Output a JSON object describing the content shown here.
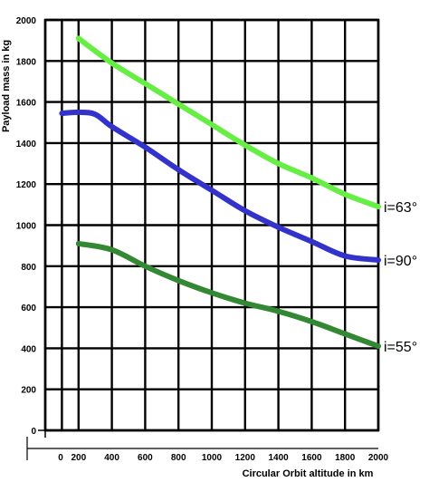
{
  "chart_data": {
    "type": "line",
    "xlabel": "Circular Orbit altitude in km",
    "ylabel": "Payload mass in kg",
    "xlim": [
      0,
      2000
    ],
    "ylim": [
      0,
      2000
    ],
    "x_ticks": [
      0,
      200,
      400,
      600,
      800,
      1000,
      1200,
      1400,
      1600,
      1800,
      2000
    ],
    "y_ticks": [
      0,
      200,
      400,
      600,
      800,
      1000,
      1200,
      1400,
      1600,
      1800,
      2000
    ],
    "x_tick_labels": [
      "0",
      "200",
      "400",
      "600",
      "800",
      "1000",
      "1200",
      "1400",
      "1600",
      "1800",
      "2000"
    ],
    "y_tick_labels": [
      "0",
      "200",
      "400",
      "600",
      "800",
      "1000",
      "1200",
      "1400",
      "1600",
      "1800",
      "2000"
    ],
    "grid": true,
    "legend": "none",
    "series": [
      {
        "name": "i=63°",
        "color": "#66ee44",
        "x": [
          200,
          400,
          600,
          800,
          1000,
          1200,
          1400,
          1600,
          1800,
          2000
        ],
        "y": [
          1910,
          1790,
          1690,
          1590,
          1490,
          1390,
          1300,
          1230,
          1150,
          1090
        ]
      },
      {
        "name": "i=90°",
        "color": "#3333cc",
        "x": [
          100,
          200,
          300,
          400,
          600,
          800,
          1000,
          1200,
          1400,
          1600,
          1800,
          2000
        ],
        "y": [
          1545,
          1550,
          1540,
          1480,
          1380,
          1270,
          1170,
          1070,
          990,
          920,
          850,
          830
        ]
      },
      {
        "name": "i=55°",
        "color": "#338833",
        "x": [
          200,
          400,
          600,
          800,
          1000,
          1200,
          1400,
          1600,
          1800,
          2000
        ],
        "y": [
          910,
          880,
          800,
          730,
          670,
          620,
          580,
          530,
          470,
          410
        ]
      }
    ]
  }
}
